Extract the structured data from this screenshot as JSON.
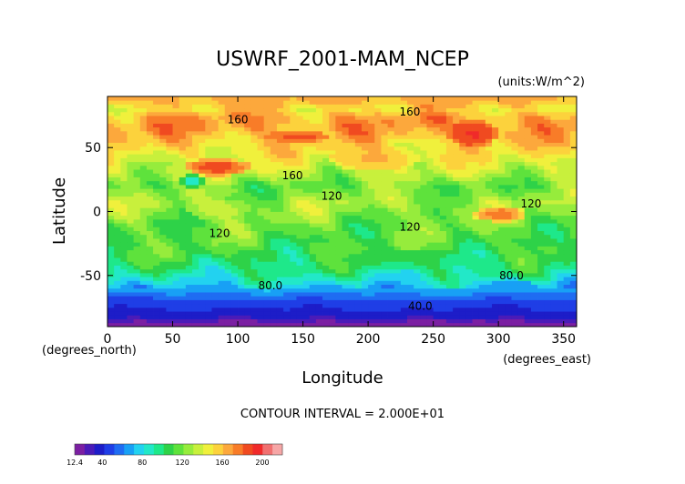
{
  "chart_data": {
    "type": "heatmap",
    "title": "USWRF_2001-MAM_NCEP",
    "units_label": "(units:W/m^2)",
    "xlabel": "Longitude",
    "ylabel": "Latitude",
    "x_units": "(degrees_east)",
    "y_units": "(degrees_north)",
    "xlim": [
      0,
      360
    ],
    "ylim": [
      -90,
      90
    ],
    "x_ticks": [
      0,
      50,
      100,
      150,
      200,
      250,
      300,
      350
    ],
    "y_ticks": [
      -50,
      0,
      50
    ],
    "contour_interval_label": "CONTOUR INTERVAL = 2.000E+01",
    "contour_labels": [
      {
        "text": "160",
        "lon": 100,
        "lat": 72
      },
      {
        "text": "160",
        "lon": 232,
        "lat": 78
      },
      {
        "text": "160",
        "lon": 142,
        "lat": 28
      },
      {
        "text": "120",
        "lon": 172,
        "lat": 12
      },
      {
        "text": "120",
        "lon": 232,
        "lat": -12
      },
      {
        "text": "120",
        "lon": 86,
        "lat": -17
      },
      {
        "text": "120",
        "lon": 325,
        "lat": 6
      },
      {
        "text": "80.0",
        "lon": 125,
        "lat": -58
      },
      {
        "text": "80.0",
        "lon": 310,
        "lat": -50
      },
      {
        "text": "40.0",
        "lon": 240,
        "lat": -74
      }
    ],
    "zonal_mean_profile": {
      "lat": [
        -88,
        -82,
        -76,
        -70,
        -64,
        -58,
        -52,
        -46,
        -40,
        -34,
        -28,
        -22,
        -16,
        -10,
        -4,
        2,
        8,
        14,
        20,
        26,
        32,
        38,
        44,
        50,
        56,
        62,
        68,
        74,
        80,
        86
      ],
      "value": [
        14,
        35,
        42,
        48,
        62,
        76,
        88,
        96,
        102,
        108,
        112,
        114,
        116,
        118,
        122,
        126,
        128,
        122,
        118,
        128,
        136,
        140,
        146,
        152,
        158,
        164,
        168,
        166,
        152,
        162
      ]
    },
    "features": [
      {
        "lon0": 60,
        "lon1": 110,
        "lat0": 28,
        "lat1": 42,
        "value": 188
      },
      {
        "lon0": 122,
        "lon1": 170,
        "lat0": 54,
        "lat1": 64,
        "value": 184
      },
      {
        "lon0": 262,
        "lon1": 300,
        "lat0": 50,
        "lat1": 72,
        "value": 192
      },
      {
        "lon0": 280,
        "lon1": 322,
        "lat0": -8,
        "lat1": 4,
        "value": 178
      },
      {
        "lon0": 170,
        "lon1": 240,
        "lat0": 32,
        "lat1": 52,
        "value": 162
      },
      {
        "lon0": 290,
        "lon1": 330,
        "lat0": -66,
        "lat1": -52,
        "value": 62
      },
      {
        "lon0": 55,
        "lon1": 75,
        "lat0": 18,
        "lat1": 30,
        "value": 84
      },
      {
        "lon0": 60,
        "lon1": 110,
        "lat0": -6,
        "lat1": 10,
        "value": 134
      },
      {
        "lon0": 180,
        "lon1": 270,
        "lat0": -44,
        "lat1": -30,
        "value": 102
      }
    ],
    "colorbar": {
      "tick_labels": [
        "12.4",
        "40",
        "80",
        "120",
        "160",
        "200"
      ],
      "tick_values": [
        12.4,
        40,
        80,
        120,
        160,
        200
      ],
      "vmin": 12.4,
      "vmax": 220,
      "colors": [
        "#7b1fa2",
        "#4a1bb8",
        "#1d1dc8",
        "#1f3ee6",
        "#1f6cf2",
        "#18a0f5",
        "#22d2f0",
        "#22e8c8",
        "#1ee88a",
        "#2ed248",
        "#5ee23c",
        "#96ec3c",
        "#c8f03c",
        "#f0f03c",
        "#fcd23c",
        "#fca83c",
        "#f87c28",
        "#f04a20",
        "#f02a2a",
        "#f07070",
        "#f6a6a6"
      ]
    },
    "grid": false,
    "legend": "bottom-left colorbar"
  }
}
